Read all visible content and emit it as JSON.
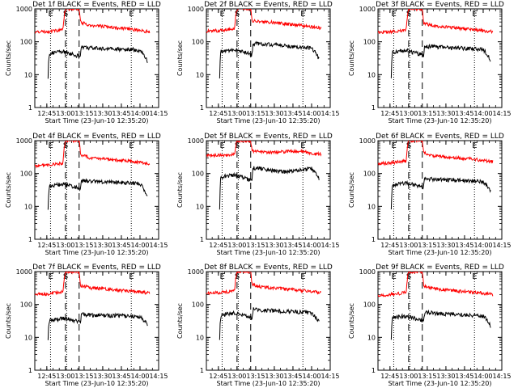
{
  "figure": {
    "start_time_label": "Start Time (23-Jun-10 12:35:20)",
    "ylabel": "Counts/sec",
    "x_tick_labels": [
      "12:45",
      "13:00",
      "13:15",
      "13:30",
      "13:45",
      "14:00",
      "14:15"
    ],
    "y_tick_labels": [
      "1",
      "10",
      "100",
      "1000"
    ],
    "marker_labels": {
      "eclipse_start": "E",
      "saa": "S",
      "eclipse_end": "E"
    },
    "colors": {
      "events": "#000000",
      "lld": "#ff0000",
      "background": "#ffffff"
    }
  },
  "chart_data": [
    {
      "type": "line",
      "title": "Det 1f BLACK = Events, RED = LLD",
      "xlabel": "Start Time (23-Jun-10 12:35:20)",
      "ylabel": "Counts/sec",
      "y_scale": "log",
      "ylim": [
        1,
        1000
      ],
      "x_range": [
        "12:35:20",
        "14:15"
      ],
      "x_ticks": [
        "12:45",
        "13:00",
        "13:15",
        "13:30",
        "13:45",
        "14:00",
        "14:15"
      ],
      "dotted_lines_at": [
        "12:48",
        "13:01",
        "13:53"
      ],
      "dashed_lines_at": [
        "13:00",
        "13:11"
      ],
      "markers": [
        {
          "label": "E",
          "x": "12:48"
        },
        {
          "label": "S",
          "x": "13:00"
        },
        {
          "label": "E",
          "x": "13:53"
        }
      ],
      "series": [
        {
          "name": "LLD",
          "color": "red",
          "x": [
            "12:35:20",
            "12:45",
            "12:58",
            "13:00",
            "13:11",
            "13:12",
            "13:20",
            "13:30",
            "13:40",
            "13:50",
            "14:00",
            "14:08"
          ],
          "y": [
            200,
            205,
            230,
            1000,
            1000,
            400,
            310,
            300,
            270,
            250,
            220,
            200
          ]
        },
        {
          "name": "Events",
          "color": "black",
          "x": [
            "12:46",
            "12:47",
            "12:52",
            "12:58",
            "13:12",
            "13:13",
            "13:20",
            "13:30",
            "13:40",
            "13:50",
            "14:00",
            "14:06"
          ],
          "y": [
            8,
            45,
            48,
            50,
            35,
            70,
            65,
            62,
            60,
            60,
            55,
            25
          ]
        }
      ]
    },
    {
      "type": "line",
      "title": "Det 2f BLACK = Events, RED = LLD",
      "xlabel": "Start Time (23-Jun-10 12:35:20)",
      "ylabel": "Counts/sec",
      "y_scale": "log",
      "ylim": [
        1,
        1000
      ],
      "x_range": [
        "12:35:20",
        "14:15"
      ],
      "x_ticks": [
        "12:45",
        "13:00",
        "13:15",
        "13:30",
        "13:45",
        "14:00",
        "14:15"
      ],
      "dotted_lines_at": [
        "12:48",
        "13:01",
        "13:53"
      ],
      "dashed_lines_at": [
        "13:00",
        "13:11"
      ],
      "markers": [
        {
          "label": "E",
          "x": "12:48"
        },
        {
          "label": "S",
          "x": "13:00"
        },
        {
          "label": "E",
          "x": "13:53"
        }
      ],
      "series": [
        {
          "name": "LLD",
          "color": "red",
          "x": [
            "12:35:20",
            "12:45",
            "12:58",
            "13:00",
            "13:11",
            "13:12",
            "13:20",
            "13:30",
            "13:40",
            "13:50",
            "14:00",
            "14:08"
          ],
          "y": [
            210,
            220,
            250,
            1000,
            1000,
            450,
            400,
            390,
            350,
            320,
            280,
            260
          ]
        },
        {
          "name": "Events",
          "color": "black",
          "x": [
            "12:46",
            "12:47",
            "12:52",
            "12:58",
            "13:12",
            "13:13",
            "13:20",
            "13:30",
            "13:40",
            "13:50",
            "14:00",
            "14:06"
          ],
          "y": [
            8,
            50,
            55,
            58,
            40,
            90,
            85,
            82,
            75,
            70,
            65,
            30
          ]
        }
      ]
    },
    {
      "type": "line",
      "title": "Det 3f BLACK = Events, RED = LLD",
      "xlabel": "Start Time (23-Jun-10 12:35:20)",
      "ylabel": "Counts/sec",
      "y_scale": "log",
      "ylim": [
        1,
        1000
      ],
      "x_range": [
        "12:35:20",
        "14:15"
      ],
      "x_ticks": [
        "12:45",
        "13:00",
        "13:15",
        "13:30",
        "13:45",
        "14:00",
        "14:15"
      ],
      "dotted_lines_at": [
        "12:48",
        "13:01",
        "13:53"
      ],
      "dashed_lines_at": [
        "13:00",
        "13:11"
      ],
      "markers": [
        {
          "label": "E",
          "x": "12:48"
        },
        {
          "label": "S",
          "x": "13:00"
        },
        {
          "label": "E",
          "x": "13:53"
        }
      ],
      "series": [
        {
          "name": "LLD",
          "color": "red",
          "x": [
            "12:35:20",
            "12:45",
            "12:58",
            "13:00",
            "13:11",
            "13:12",
            "13:20",
            "13:30",
            "13:40",
            "13:50",
            "14:00",
            "14:08"
          ],
          "y": [
            190,
            200,
            230,
            1000,
            1000,
            380,
            300,
            280,
            260,
            240,
            220,
            200
          ]
        },
        {
          "name": "Events",
          "color": "black",
          "x": [
            "12:46",
            "12:47",
            "12:52",
            "12:58",
            "13:12",
            "13:13",
            "13:20",
            "13:30",
            "13:40",
            "13:50",
            "14:00",
            "14:06"
          ],
          "y": [
            8,
            48,
            52,
            55,
            38,
            75,
            70,
            68,
            65,
            62,
            58,
            28
          ]
        }
      ]
    },
    {
      "type": "line",
      "title": "Det 4f BLACK = Events, RED = LLD",
      "xlabel": "Start Time (23-Jun-10 12:35:20)",
      "ylabel": "Counts/sec",
      "y_scale": "log",
      "ylim": [
        1,
        1000
      ],
      "x_range": [
        "12:35:20",
        "14:15"
      ],
      "x_ticks": [
        "12:45",
        "13:00",
        "13:15",
        "13:30",
        "13:45",
        "14:00",
        "14:15"
      ],
      "dotted_lines_at": [
        "12:48",
        "13:01",
        "13:53"
      ],
      "dashed_lines_at": [
        "13:00",
        "13:11"
      ],
      "markers": [
        {
          "label": "E",
          "x": "12:48"
        },
        {
          "label": "S",
          "x": "13:00"
        },
        {
          "label": "E",
          "x": "13:53"
        }
      ],
      "series": [
        {
          "name": "LLD",
          "color": "red",
          "x": [
            "12:35:20",
            "12:45",
            "12:58",
            "13:00",
            "13:11",
            "13:12",
            "13:20",
            "13:30",
            "13:40",
            "13:50",
            "14:00",
            "14:08"
          ],
          "y": [
            170,
            180,
            210,
            1000,
            1000,
            380,
            300,
            280,
            260,
            240,
            220,
            200
          ]
        },
        {
          "name": "Events",
          "color": "black",
          "x": [
            "12:46",
            "12:47",
            "12:52",
            "12:58",
            "13:12",
            "13:13",
            "13:20",
            "13:30",
            "13:40",
            "13:50",
            "14:00",
            "14:06"
          ],
          "y": [
            8,
            40,
            45,
            48,
            35,
            60,
            58,
            56,
            55,
            52,
            50,
            20
          ]
        }
      ]
    },
    {
      "type": "line",
      "title": "Det 5f BLACK = Events, RED = LLD",
      "xlabel": "Start Time (23-Jun-10 12:35:20)",
      "ylabel": "Counts/sec",
      "y_scale": "log",
      "ylim": [
        1,
        1000
      ],
      "x_range": [
        "12:35:20",
        "14:15"
      ],
      "x_ticks": [
        "12:45",
        "13:00",
        "13:15",
        "13:30",
        "13:45",
        "14:00",
        "14:15"
      ],
      "dotted_lines_at": [
        "12:48",
        "13:01",
        "13:53"
      ],
      "dashed_lines_at": [
        "13:00",
        "13:11"
      ],
      "markers": [
        {
          "label": "E",
          "x": "12:48"
        },
        {
          "label": "S",
          "x": "13:00"
        },
        {
          "label": "E",
          "x": "13:53"
        }
      ],
      "series": [
        {
          "name": "LLD",
          "color": "red",
          "x": [
            "12:35:20",
            "12:45",
            "12:58",
            "13:00",
            "13:11",
            "13:12",
            "13:20",
            "13:30",
            "13:40",
            "13:50",
            "14:00",
            "14:08"
          ],
          "y": [
            350,
            360,
            380,
            1000,
            1000,
            500,
            450,
            440,
            470,
            480,
            420,
            380
          ]
        },
        {
          "name": "Events",
          "color": "black",
          "x": [
            "12:46",
            "12:47",
            "12:52",
            "12:58",
            "13:12",
            "13:13",
            "13:20",
            "13:30",
            "13:40",
            "13:50",
            "14:00",
            "14:06"
          ],
          "y": [
            8,
            80,
            85,
            90,
            60,
            150,
            140,
            120,
            110,
            130,
            140,
            70
          ]
        }
      ]
    },
    {
      "type": "line",
      "title": "Det 6f BLACK = Events, RED = LLD",
      "xlabel": "Start Time (23-Jun-10 12:35:20)",
      "ylabel": "Counts/sec",
      "y_scale": "log",
      "ylim": [
        1,
        1000
      ],
      "x_range": [
        "12:35:20",
        "14:15"
      ],
      "x_ticks": [
        "12:45",
        "13:00",
        "13:15",
        "13:30",
        "13:45",
        "14:00",
        "14:15"
      ],
      "dotted_lines_at": [
        "12:48",
        "13:01",
        "13:53"
      ],
      "dashed_lines_at": [
        "13:00",
        "13:11"
      ],
      "markers": [
        {
          "label": "E",
          "x": "12:48"
        },
        {
          "label": "S",
          "x": "13:00"
        },
        {
          "label": "E",
          "x": "13:53"
        }
      ],
      "series": [
        {
          "name": "LLD",
          "color": "red",
          "x": [
            "12:35:20",
            "12:45",
            "12:58",
            "13:00",
            "13:11",
            "13:12",
            "13:20",
            "13:30",
            "13:40",
            "13:50",
            "14:00",
            "14:08"
          ],
          "y": [
            200,
            210,
            240,
            1000,
            1000,
            420,
            350,
            320,
            300,
            280,
            250,
            230
          ]
        },
        {
          "name": "Events",
          "color": "black",
          "x": [
            "12:46",
            "12:47",
            "12:52",
            "12:58",
            "13:12",
            "13:13",
            "13:20",
            "13:30",
            "13:40",
            "13:50",
            "14:00",
            "14:06"
          ],
          "y": [
            8,
            45,
            50,
            52,
            38,
            70,
            68,
            65,
            62,
            60,
            55,
            30
          ]
        }
      ]
    },
    {
      "type": "line",
      "title": "Det 7f BLACK = Events, RED = LLD",
      "xlabel": "Start Time (23-Jun-10 12:35:20)",
      "ylabel": "Counts/sec",
      "y_scale": "log",
      "ylim": [
        1,
        1000
      ],
      "x_range": [
        "12:35:20",
        "14:15"
      ],
      "x_ticks": [
        "12:45",
        "13:00",
        "13:15",
        "13:30",
        "13:45",
        "14:00",
        "14:15"
      ],
      "dotted_lines_at": [
        "12:48",
        "13:01",
        "13:53"
      ],
      "dashed_lines_at": [
        "13:00",
        "13:11"
      ],
      "markers": [
        {
          "label": "E",
          "x": "12:48"
        },
        {
          "label": "S",
          "x": "13:00"
        },
        {
          "label": "E",
          "x": "13:53"
        }
      ],
      "series": [
        {
          "name": "LLD",
          "color": "red",
          "x": [
            "12:35:20",
            "12:45",
            "12:58",
            "13:00",
            "13:11",
            "13:12",
            "13:20",
            "13:30",
            "13:40",
            "13:50",
            "14:00",
            "14:08"
          ],
          "y": [
            200,
            210,
            240,
            1000,
            1000,
            380,
            320,
            300,
            280,
            260,
            240,
            220
          ]
        },
        {
          "name": "Events",
          "color": "black",
          "x": [
            "12:46",
            "12:47",
            "12:52",
            "12:58",
            "13:12",
            "13:13",
            "13:20",
            "13:30",
            "13:40",
            "13:50",
            "14:00",
            "14:06"
          ],
          "y": [
            8,
            32,
            35,
            38,
            30,
            50,
            48,
            47,
            46,
            45,
            42,
            25
          ]
        }
      ]
    },
    {
      "type": "line",
      "title": "Det 8f BLACK = Events, RED = LLD",
      "xlabel": "Start Time (23-Jun-10 12:35:20)",
      "ylabel": "Counts/sec",
      "y_scale": "log",
      "ylim": [
        1,
        1000
      ],
      "x_range": [
        "12:35:20",
        "14:15"
      ],
      "x_ticks": [
        "12:45",
        "13:00",
        "13:15",
        "13:30",
        "13:45",
        "14:00",
        "14:15"
      ],
      "dotted_lines_at": [
        "12:48",
        "13:01",
        "13:53"
      ],
      "dashed_lines_at": [
        "13:00",
        "13:11"
      ],
      "markers": [
        {
          "label": "E",
          "x": "12:48"
        },
        {
          "label": "S",
          "x": "13:00"
        },
        {
          "label": "E",
          "x": "13:53"
        }
      ],
      "series": [
        {
          "name": "LLD",
          "color": "red",
          "x": [
            "12:35:20",
            "12:45",
            "12:58",
            "13:00",
            "13:11",
            "13:12",
            "13:20",
            "13:30",
            "13:40",
            "13:50",
            "14:00",
            "14:08"
          ],
          "y": [
            220,
            230,
            260,
            1000,
            1000,
            400,
            340,
            320,
            290,
            270,
            250,
            230
          ]
        },
        {
          "name": "Events",
          "color": "black",
          "x": [
            "12:46",
            "12:47",
            "12:52",
            "12:58",
            "13:12",
            "13:13",
            "13:20",
            "13:30",
            "13:40",
            "13:50",
            "14:00",
            "14:06"
          ],
          "y": [
            8,
            48,
            52,
            55,
            38,
            72,
            68,
            65,
            62,
            60,
            55,
            30
          ]
        }
      ]
    },
    {
      "type": "line",
      "title": "Det 9f BLACK = Events, RED = LLD",
      "xlabel": "Start Time (23-Jun-10 12:35:20)",
      "ylabel": "Counts/sec",
      "y_scale": "log",
      "ylim": [
        1,
        1000
      ],
      "x_range": [
        "12:35:20",
        "14:15"
      ],
      "x_ticks": [
        "12:45",
        "13:00",
        "13:15",
        "13:30",
        "13:45",
        "14:00",
        "14:15"
      ],
      "dotted_lines_at": [
        "12:48",
        "13:01",
        "13:53"
      ],
      "dashed_lines_at": [
        "13:00",
        "13:11"
      ],
      "markers": [
        {
          "label": "E",
          "x": "12:48"
        },
        {
          "label": "S",
          "x": "13:00"
        },
        {
          "label": "E",
          "x": "13:53"
        }
      ],
      "series": [
        {
          "name": "LLD",
          "color": "red",
          "x": [
            "12:35:20",
            "12:45",
            "12:58",
            "13:00",
            "13:11",
            "13:12",
            "13:20",
            "13:30",
            "13:40",
            "13:50",
            "14:00",
            "14:08"
          ],
          "y": [
            190,
            200,
            230,
            1000,
            1000,
            360,
            300,
            280,
            260,
            240,
            220,
            200
          ]
        },
        {
          "name": "Events",
          "color": "black",
          "x": [
            "12:46",
            "12:47",
            "12:52",
            "12:58",
            "13:12",
            "13:13",
            "13:20",
            "13:30",
            "13:40",
            "13:50",
            "14:00",
            "14:06"
          ],
          "y": [
            8,
            38,
            42,
            45,
            32,
            58,
            55,
            52,
            50,
            48,
            45,
            22
          ]
        }
      ]
    }
  ]
}
